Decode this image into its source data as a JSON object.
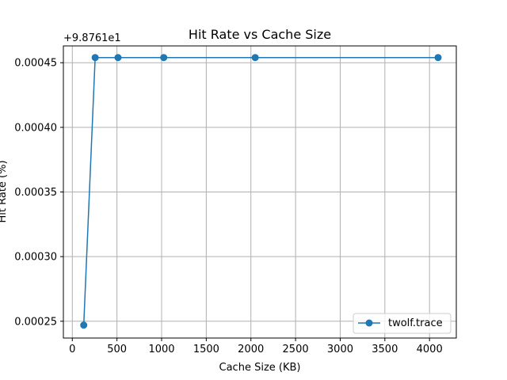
{
  "chart_data": {
    "type": "line",
    "title": "Hit Rate vs Cache Size",
    "xlabel": "Cache Size (KB)",
    "ylabel": "Hit Rate (%)",
    "y_offset_label": "+9.8761e1",
    "xlim": [
      -100,
      4300
    ],
    "ylim": [
      0.000237,
      0.000463
    ],
    "x_ticks": [
      0,
      500,
      1000,
      1500,
      2000,
      2500,
      3000,
      3500,
      4000
    ],
    "y_ticks": [
      0.00025,
      0.0003,
      0.00035,
      0.0004,
      0.00045
    ],
    "grid": true,
    "legend_position": "lower-right",
    "series": [
      {
        "name": "twolf.trace",
        "color": "#1f77b4",
        "marker": "circle",
        "x": [
          128,
          256,
          512,
          1024,
          2048,
          4096
        ],
        "y": [
          0.000247,
          0.000454,
          0.000454,
          0.000454,
          0.000454,
          0.000454
        ]
      }
    ]
  }
}
